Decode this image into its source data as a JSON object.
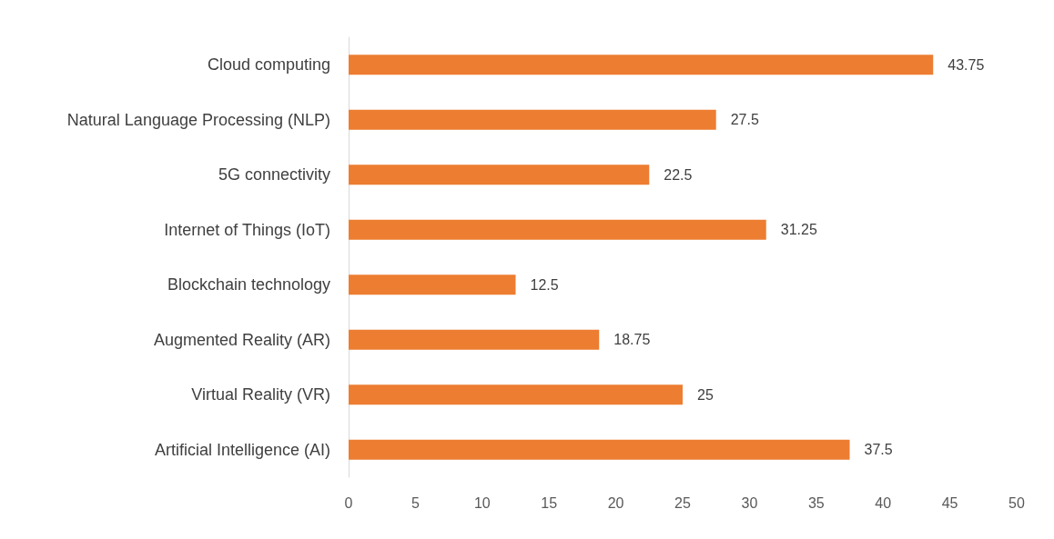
{
  "chart_data": {
    "type": "bar",
    "orientation": "horizontal",
    "categories": [
      "Cloud computing",
      "Natural Language Processing (NLP)",
      "5G connectivity",
      "Internet of Things (IoT)",
      "Blockchain technology",
      "Augmented Reality (AR)",
      "Virtual Reality (VR)",
      "Artificial Intelligence (AI)"
    ],
    "values": [
      43.75,
      27.5,
      22.5,
      31.25,
      12.5,
      18.75,
      25,
      37.5
    ],
    "color": "#ed7d31",
    "xlim": [
      0,
      50
    ],
    "xticks": [
      0,
      5,
      10,
      15,
      20,
      25,
      30,
      35,
      40,
      45,
      50
    ],
    "data_labels": true
  }
}
